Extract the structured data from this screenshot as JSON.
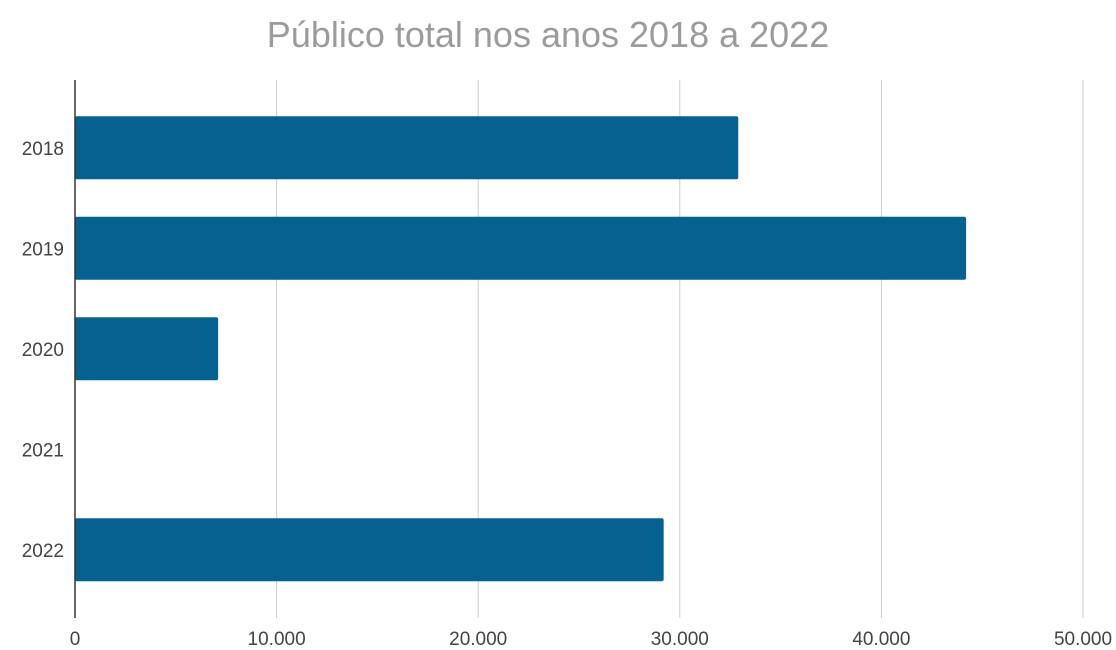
{
  "chart_data": {
    "type": "bar",
    "orientation": "horizontal",
    "title": "Público total nos anos 2018 a 2022",
    "xlabel": "",
    "ylabel": "",
    "categories": [
      "2018",
      "2019",
      "2020",
      "2021",
      "2022"
    ],
    "values": [
      32900,
      44200,
      7100,
      0,
      29200
    ],
    "xlim": [
      0,
      50000
    ],
    "xticks": [
      0,
      10000,
      20000,
      30000,
      40000,
      50000
    ],
    "xtick_labels": [
      "0",
      "10.000",
      "20.000",
      "30.000",
      "40.000",
      "50.000"
    ],
    "grid": "vertical",
    "legend": "none",
    "bar_color": "#05618f",
    "grid_color": "#cccccc",
    "axis_color": "#333333"
  }
}
